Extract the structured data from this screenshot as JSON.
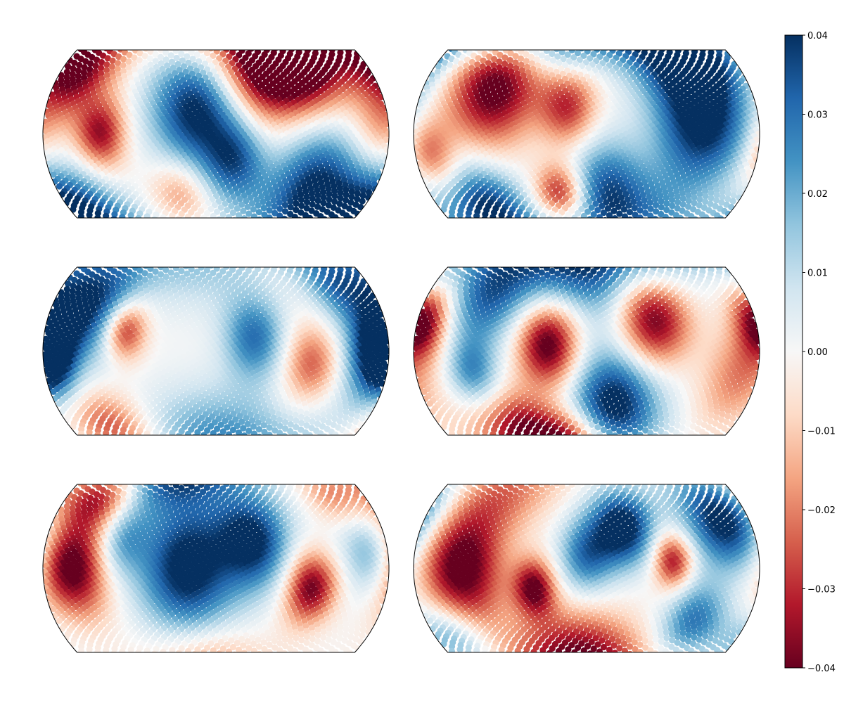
{
  "chart_data": {
    "type": "scatter",
    "projection": "Kavrayskiy VII (sky map)",
    "layout": {
      "rows": 3,
      "cols": 2
    },
    "colormap": {
      "name": "RdBu",
      "vmin": -0.04,
      "vmax": 0.04,
      "stops": [
        "#67001f",
        "#b2182b",
        "#d6604d",
        "#f4a582",
        "#fddbc7",
        "#f7f7f7",
        "#d1e5f0",
        "#92c5de",
        "#4393c3",
        "#2166ac",
        "#053061"
      ],
      "ticks": [
        {
          "value": 0.04,
          "label": "0.04"
        },
        {
          "value": 0.03,
          "label": "0.03"
        },
        {
          "value": 0.02,
          "label": "0.02"
        },
        {
          "value": 0.01,
          "label": "0.01"
        },
        {
          "value": 0.0,
          "label": "0.00"
        },
        {
          "value": -0.01,
          "label": "−0.01"
        },
        {
          "value": -0.02,
          "label": "−0.02"
        },
        {
          "value": -0.03,
          "label": "−0.03"
        },
        {
          "value": -0.04,
          "label": "−0.04"
        }
      ]
    },
    "panels": [
      {
        "name": "panel-1",
        "features": [
          {
            "lon": -160,
            "lat": 45,
            "amp": -0.04,
            "width": 22
          },
          {
            "lon": -120,
            "lat": 0,
            "amp": -0.035,
            "width": 18
          },
          {
            "lon": -20,
            "lat": 20,
            "amp": 0.045,
            "width": 32
          },
          {
            "lon": 20,
            "lat": -20,
            "amp": 0.03,
            "width": 22
          },
          {
            "lon": 50,
            "lat": 50,
            "amp": -0.045,
            "width": 30
          },
          {
            "lon": 100,
            "lat": 55,
            "amp": -0.04,
            "width": 25
          },
          {
            "lon": -40,
            "lat": -45,
            "amp": -0.02,
            "width": 18
          },
          {
            "lon": 110,
            "lat": -40,
            "amp": 0.04,
            "width": 30
          },
          {
            "lon": -170,
            "lat": -60,
            "amp": 0.04,
            "width": 24
          },
          {
            "lon": 170,
            "lat": 5,
            "amp": -0.015,
            "width": 20
          }
        ]
      },
      {
        "name": "panel-2",
        "features": [
          {
            "lon": -100,
            "lat": 35,
            "amp": -0.045,
            "width": 30
          },
          {
            "lon": -20,
            "lat": 20,
            "amp": -0.03,
            "width": 20
          },
          {
            "lon": 120,
            "lat": 10,
            "amp": 0.045,
            "width": 35
          },
          {
            "lon": 120,
            "lat": 65,
            "amp": 0.045,
            "width": 25
          },
          {
            "lon": -30,
            "lat": -45,
            "amp": -0.04,
            "width": 15
          },
          {
            "lon": -120,
            "lat": -55,
            "amp": 0.04,
            "width": 22
          },
          {
            "lon": 20,
            "lat": -40,
            "amp": 0.03,
            "width": 25
          },
          {
            "lon": -165,
            "lat": -15,
            "amp": -0.025,
            "width": 18
          },
          {
            "lon": -40,
            "lat": 70,
            "amp": 0.03,
            "width": 20
          },
          {
            "lon": 60,
            "lat": -70,
            "amp": 0.02,
            "width": 25
          }
        ]
      },
      {
        "name": "panel-3",
        "features": [
          {
            "lon": -140,
            "lat": 35,
            "amp": 0.04,
            "width": 28
          },
          {
            "lon": -175,
            "lat": 0,
            "amp": 0.04,
            "width": 18
          },
          {
            "lon": 170,
            "lat": 0,
            "amp": 0.045,
            "width": 25
          },
          {
            "lon": -95,
            "lat": 15,
            "amp": -0.035,
            "width": 15
          },
          {
            "lon": 100,
            "lat": -10,
            "amp": -0.025,
            "width": 20
          },
          {
            "lon": 40,
            "lat": 10,
            "amp": 0.03,
            "width": 22
          },
          {
            "lon": -130,
            "lat": -60,
            "amp": -0.035,
            "width": 20
          },
          {
            "lon": 0,
            "lat": -75,
            "amp": 0.03,
            "width": 30
          },
          {
            "lon": -20,
            "lat": 70,
            "amp": 0.015,
            "width": 25
          },
          {
            "lon": 140,
            "lat": 50,
            "amp": 0.025,
            "width": 18
          }
        ]
      },
      {
        "name": "panel-4",
        "features": [
          {
            "lon": -175,
            "lat": 20,
            "amp": -0.045,
            "width": 18
          },
          {
            "lon": -40,
            "lat": 5,
            "amp": -0.045,
            "width": 22
          },
          {
            "lon": 70,
            "lat": 25,
            "amp": -0.045,
            "width": 25
          },
          {
            "lon": 30,
            "lat": -40,
            "amp": 0.045,
            "width": 28
          },
          {
            "lon": 10,
            "lat": 70,
            "amp": 0.045,
            "width": 30
          },
          {
            "lon": -110,
            "lat": 40,
            "amp": 0.03,
            "width": 25
          },
          {
            "lon": -80,
            "lat": -60,
            "amp": -0.04,
            "width": 20
          },
          {
            "lon": -20,
            "lat": -65,
            "amp": -0.035,
            "width": 15
          },
          {
            "lon": 160,
            "lat": -20,
            "amp": -0.02,
            "width": 25
          },
          {
            "lon": -120,
            "lat": -15,
            "amp": 0.025,
            "width": 18
          }
        ]
      },
      {
        "name": "panel-5",
        "features": [
          {
            "lon": -150,
            "lat": 0,
            "amp": -0.045,
            "width": 25
          },
          {
            "lon": -140,
            "lat": 55,
            "amp": -0.035,
            "width": 18
          },
          {
            "lon": -30,
            "lat": 0,
            "amp": 0.045,
            "width": 35
          },
          {
            "lon": 40,
            "lat": 20,
            "amp": 0.04,
            "width": 25
          },
          {
            "lon": 100,
            "lat": -15,
            "amp": -0.04,
            "width": 18
          },
          {
            "lon": -100,
            "lat": 20,
            "amp": 0.02,
            "width": 18
          },
          {
            "lon": -60,
            "lat": 75,
            "amp": 0.04,
            "width": 20
          },
          {
            "lon": 160,
            "lat": 10,
            "amp": 0.02,
            "width": 20
          },
          {
            "lon": -10,
            "lat": -70,
            "amp": -0.02,
            "width": 20
          },
          {
            "lon": 140,
            "lat": 55,
            "amp": -0.02,
            "width": 15
          }
        ]
      },
      {
        "name": "panel-6",
        "features": [
          {
            "lon": -130,
            "lat": 0,
            "amp": -0.045,
            "width": 30
          },
          {
            "lon": -55,
            "lat": -15,
            "amp": -0.04,
            "width": 15
          },
          {
            "lon": 0,
            "lat": 10,
            "amp": 0.03,
            "width": 20
          },
          {
            "lon": 40,
            "lat": 30,
            "amp": 0.045,
            "width": 20
          },
          {
            "lon": 150,
            "lat": 35,
            "amp": 0.045,
            "width": 25
          },
          {
            "lon": 90,
            "lat": 5,
            "amp": -0.035,
            "width": 14
          },
          {
            "lon": -10,
            "lat": -70,
            "amp": -0.045,
            "width": 25
          },
          {
            "lon": 120,
            "lat": -40,
            "amp": 0.03,
            "width": 20
          },
          {
            "lon": -100,
            "lat": 60,
            "amp": -0.02,
            "width": 25
          },
          {
            "lon": -160,
            "lat": -55,
            "amp": 0.025,
            "width": 18
          }
        ]
      }
    ]
  }
}
